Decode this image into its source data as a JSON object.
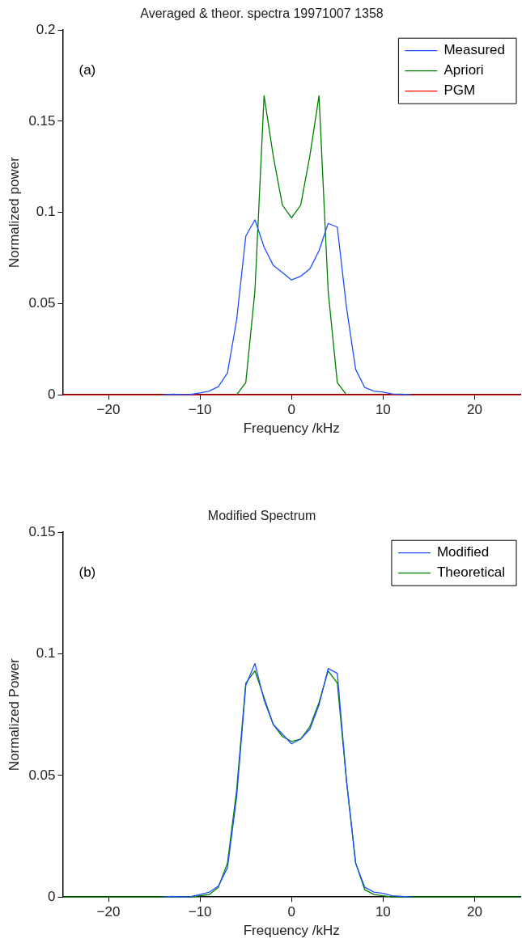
{
  "chart_data": [
    {
      "type": "line",
      "title": "Averaged & theor. spectra 19971007 1358",
      "xlabel": "Frequency /kHz",
      "ylabel": "Normalized power",
      "annotations": [
        "(a)"
      ],
      "x": [
        -25,
        -24,
        -23,
        -22,
        -21,
        -20,
        -19,
        -18,
        -17,
        -16,
        -15,
        -14,
        -13,
        -12,
        -11,
        -10,
        -9,
        -8,
        -7,
        -6,
        -5,
        -4,
        -3,
        -2,
        -1,
        0,
        1,
        2,
        3,
        4,
        5,
        6,
        7,
        8,
        9,
        10,
        11,
        12,
        13,
        14,
        15,
        16,
        17,
        18,
        19,
        20,
        21,
        22,
        23,
        24,
        25
      ],
      "series": [
        {
          "name": "Measured",
          "color": "#1f4fff",
          "values": [
            null,
            null,
            null,
            null,
            null,
            null,
            null,
            null,
            null,
            null,
            null,
            0,
            0.0003,
            0.0001,
            0.0002,
            0.001,
            0.002,
            0.0045,
            0.012,
            0.041,
            0.087,
            0.096,
            0.081,
            0.071,
            0.067,
            0.063,
            0.065,
            0.069,
            0.079,
            0.094,
            0.092,
            0.048,
            0.014,
            0.004,
            0.002,
            0.0015,
            0.0005,
            0.0003,
            0,
            null,
            null,
            null,
            null,
            null,
            null,
            null,
            null,
            null,
            null,
            null,
            null
          ]
        },
        {
          "name": "Apriori",
          "color": "#008000",
          "values": [
            null,
            null,
            null,
            null,
            null,
            null,
            null,
            null,
            null,
            null,
            null,
            null,
            null,
            null,
            null,
            null,
            null,
            null,
            null,
            0,
            0.0067,
            0.057,
            0.164,
            0.131,
            0.104,
            0.097,
            0.104,
            0.131,
            0.164,
            0.057,
            0.0067,
            0,
            null,
            null,
            null,
            null,
            null,
            null,
            null,
            null,
            null,
            null,
            null,
            null,
            null,
            null,
            null,
            null,
            null,
            null,
            null
          ]
        },
        {
          "name": "PGM",
          "color": "#ff0000",
          "values": [
            0,
            0,
            0,
            0,
            0,
            0,
            0,
            0,
            0,
            0,
            0,
            0,
            0,
            0,
            0,
            0,
            0,
            0,
            0,
            0,
            0,
            0,
            0,
            0,
            0,
            0,
            0,
            0,
            0,
            0,
            0,
            0,
            0,
            0,
            0,
            0,
            0,
            0,
            0,
            0,
            0,
            0,
            0,
            0,
            0,
            0,
            0,
            0,
            0,
            0,
            0
          ]
        }
      ],
      "xlim": [
        -25,
        25
      ],
      "xticks": [
        -20,
        -10,
        0,
        10,
        20
      ],
      "ylim": [
        0,
        0.2
      ],
      "yticks": [
        0,
        0.05,
        0.1,
        0.15,
        0.2
      ],
      "legend": "top right",
      "grid": false
    },
    {
      "type": "line",
      "title": "Modified Spectrum",
      "xlabel": "Frequency /kHz",
      "ylabel": "Normalized Power",
      "annotations": [
        "(b)"
      ],
      "x": [
        -25,
        -24,
        -23,
        -22,
        -21,
        -20,
        -19,
        -18,
        -17,
        -16,
        -15,
        -14,
        -13,
        -12,
        -11,
        -10,
        -9,
        -8,
        -7,
        -6,
        -5,
        -4,
        -3,
        -2,
        -1,
        0,
        1,
        2,
        3,
        4,
        5,
        6,
        7,
        8,
        9,
        10,
        11,
        12,
        13,
        14,
        15,
        16,
        17,
        18,
        19,
        20,
        21,
        22,
        23,
        24,
        25
      ],
      "series": [
        {
          "name": "Modified",
          "color": "#1f4fff",
          "values": [
            null,
            null,
            null,
            null,
            null,
            null,
            null,
            null,
            null,
            null,
            null,
            0,
            0.0003,
            0,
            0.0002,
            0.001,
            0.002,
            0.0045,
            0.012,
            0.041,
            0.087,
            0.096,
            0.081,
            0.071,
            0.067,
            0.063,
            0.065,
            0.069,
            0.079,
            0.094,
            0.092,
            0.048,
            0.014,
            0.004,
            0.002,
            0.0015,
            0.0005,
            0.0003,
            0,
            null,
            null,
            null,
            null,
            null,
            null,
            null,
            null,
            null,
            null,
            null,
            null
          ]
        },
        {
          "name": "Theoretical",
          "color": "#008000",
          "values": [
            0,
            0,
            0,
            0,
            0,
            0,
            0,
            0,
            0,
            0,
            0,
            0,
            0,
            0,
            0,
            0.0005,
            0.001,
            0.004,
            0.014,
            0.044,
            0.088,
            0.093,
            0.082,
            0.071,
            0.066,
            0.064,
            0.065,
            0.07,
            0.08,
            0.093,
            0.088,
            0.048,
            0.014,
            0.003,
            0.001,
            0.0005,
            0,
            0,
            0,
            0,
            0,
            0,
            0,
            0,
            0,
            0,
            0,
            0,
            0,
            0,
            0
          ]
        }
      ],
      "xlim": [
        -25,
        25
      ],
      "xticks": [
        -20,
        -10,
        0,
        10,
        20
      ],
      "ylim": [
        0,
        0.15
      ],
      "yticks": [
        0,
        0.05,
        0.1,
        0.15
      ],
      "legend": "top right",
      "grid": false
    }
  ]
}
